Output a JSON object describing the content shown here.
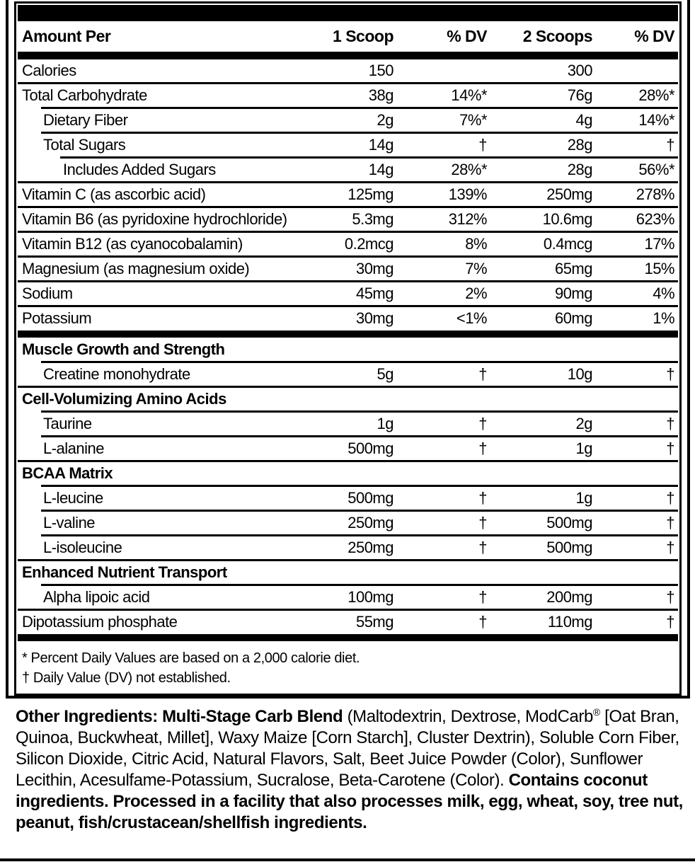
{
  "colors": {
    "ink": "#000000",
    "paper": "#ffffff"
  },
  "table": {
    "header": {
      "amount_per": "Amount Per",
      "col_1_scoop": "1 Scoop",
      "col_dv_1": "% DV",
      "col_2_scoops": "2 Scoops",
      "col_dv_2": "% DV"
    },
    "rows": [
      {
        "type": "item",
        "name": "Calories",
        "indent": 0,
        "v1": "150",
        "dv1": "",
        "v2": "300",
        "dv2": "",
        "sep": "none"
      },
      {
        "type": "item",
        "name": "Total Carbohydrate",
        "indent": 0,
        "v1": "38g",
        "dv1": "14%*",
        "v2": "76g",
        "dv2": "28%*",
        "sep": "full"
      },
      {
        "type": "item",
        "name": "Dietary Fiber",
        "indent": 1,
        "v1": "2g",
        "dv1": "7%*",
        "v2": "4g",
        "dv2": "14%*",
        "sep": "indent1"
      },
      {
        "type": "item",
        "name": "Total Sugars",
        "indent": 1,
        "v1": "14g",
        "dv1": "†",
        "v2": "28g",
        "dv2": "†",
        "sep": "indent1"
      },
      {
        "type": "item",
        "name": "Includes Added Sugars",
        "indent": 2,
        "v1": "14g",
        "dv1": "28%*",
        "v2": "28g",
        "dv2": "56%*",
        "sep": "indent2"
      },
      {
        "type": "item",
        "name": "Vitamin C (as ascorbic acid)",
        "indent": 0,
        "v1": "125mg",
        "dv1": "139%",
        "v2": "250mg",
        "dv2": "278%",
        "sep": "full"
      },
      {
        "type": "item",
        "name": "Vitamin B6 (as pyridoxine hydrochloride)",
        "indent": 0,
        "v1": "5.3mg",
        "dv1": "312%",
        "v2": "10.6mg",
        "dv2": "623%",
        "sep": "full"
      },
      {
        "type": "item",
        "name": "Vitamin B12 (as cyanocobalamin)",
        "indent": 0,
        "v1": "0.2mcg",
        "dv1": "8%",
        "v2": "0.4mcg",
        "dv2": "17%",
        "sep": "full"
      },
      {
        "type": "item",
        "name": "Magnesium (as magnesium oxide)",
        "indent": 0,
        "v1": "30mg",
        "dv1": "7%",
        "v2": "65mg",
        "dv2": "15%",
        "sep": "full"
      },
      {
        "type": "item",
        "name": "Sodium",
        "indent": 0,
        "v1": "45mg",
        "dv1": "2%",
        "v2": "90mg",
        "dv2": "4%",
        "sep": "full"
      },
      {
        "type": "item",
        "name": "Potassium",
        "indent": 0,
        "v1": "30mg",
        "dv1": "<1%",
        "v2": "60mg",
        "dv2": "1%",
        "sep": "full"
      },
      {
        "type": "bar"
      },
      {
        "type": "section",
        "name": "Muscle Growth and Strength",
        "sep": "none"
      },
      {
        "type": "item",
        "name": "Creatine monohydrate",
        "indent": 1,
        "v1": "5g",
        "dv1": "†",
        "v2": "10g",
        "dv2": "†",
        "sep": "indent1"
      },
      {
        "type": "section",
        "name": "Cell-Volumizing Amino Acids",
        "sep": "full"
      },
      {
        "type": "item",
        "name": "Taurine",
        "indent": 1,
        "v1": "1g",
        "dv1": "†",
        "v2": "2g",
        "dv2": "†",
        "sep": "indent1"
      },
      {
        "type": "item",
        "name": "L-alanine",
        "indent": 1,
        "v1": "500mg",
        "dv1": "†",
        "v2": "1g",
        "dv2": "†",
        "sep": "indent1"
      },
      {
        "type": "section",
        "name": "BCAA Matrix",
        "sep": "full"
      },
      {
        "type": "item",
        "name": "L-leucine",
        "indent": 1,
        "v1": "500mg",
        "dv1": "†",
        "v2": "1g",
        "dv2": "†",
        "sep": "indent1"
      },
      {
        "type": "item",
        "name": "L-valine",
        "indent": 1,
        "v1": "250mg",
        "dv1": "†",
        "v2": "500mg",
        "dv2": "†",
        "sep": "indent1"
      },
      {
        "type": "item",
        "name": "L-isoleucine",
        "indent": 1,
        "v1": "250mg",
        "dv1": "†",
        "v2": "500mg",
        "dv2": "†",
        "sep": "indent1"
      },
      {
        "type": "section",
        "name": "Enhanced Nutrient Transport",
        "sep": "full"
      },
      {
        "type": "item",
        "name": "Alpha lipoic acid",
        "indent": 1,
        "v1": "100mg",
        "dv1": "†",
        "v2": "200mg",
        "dv2": "†",
        "sep": "indent1"
      },
      {
        "type": "item",
        "name": "Dipotassium phosphate",
        "indent": 0,
        "v1": "55mg",
        "dv1": "†",
        "v2": "110mg",
        "dv2": "†",
        "sep": "full"
      }
    ],
    "footnotes": [
      "* Percent Daily Values are based on a 2,000 calorie diet.",
      "† Daily Value (DV) not established."
    ]
  },
  "other_ingredients": {
    "segments": [
      {
        "style": "bold",
        "text": "Other Ingredients: Multi-Stage Carb Blend"
      },
      {
        "style": "regular",
        "text": " (Maltodextrin, Dextrose, ModCarb"
      },
      {
        "style": "sup",
        "text": "®"
      },
      {
        "style": "regular",
        "text": " [Oat Bran, Quinoa, Buckwheat, Millet], Waxy Maize [Corn Starch], Cluster Dextrin), Soluble Corn Fiber, Silicon Dioxide, Citric Acid, Natural Flavors, Salt, Beet Juice Powder (Color), Sunflower Lecithin, Acesulfame-Potassium, Sucralose, Beta-Carotene (Color). "
      },
      {
        "style": "bold",
        "text": "Contains coconut ingredients. Processed in a facility that also processes milk, egg, wheat, soy, tree nut, peanut, fish/crustacean/shellfish ingredients."
      }
    ]
  }
}
